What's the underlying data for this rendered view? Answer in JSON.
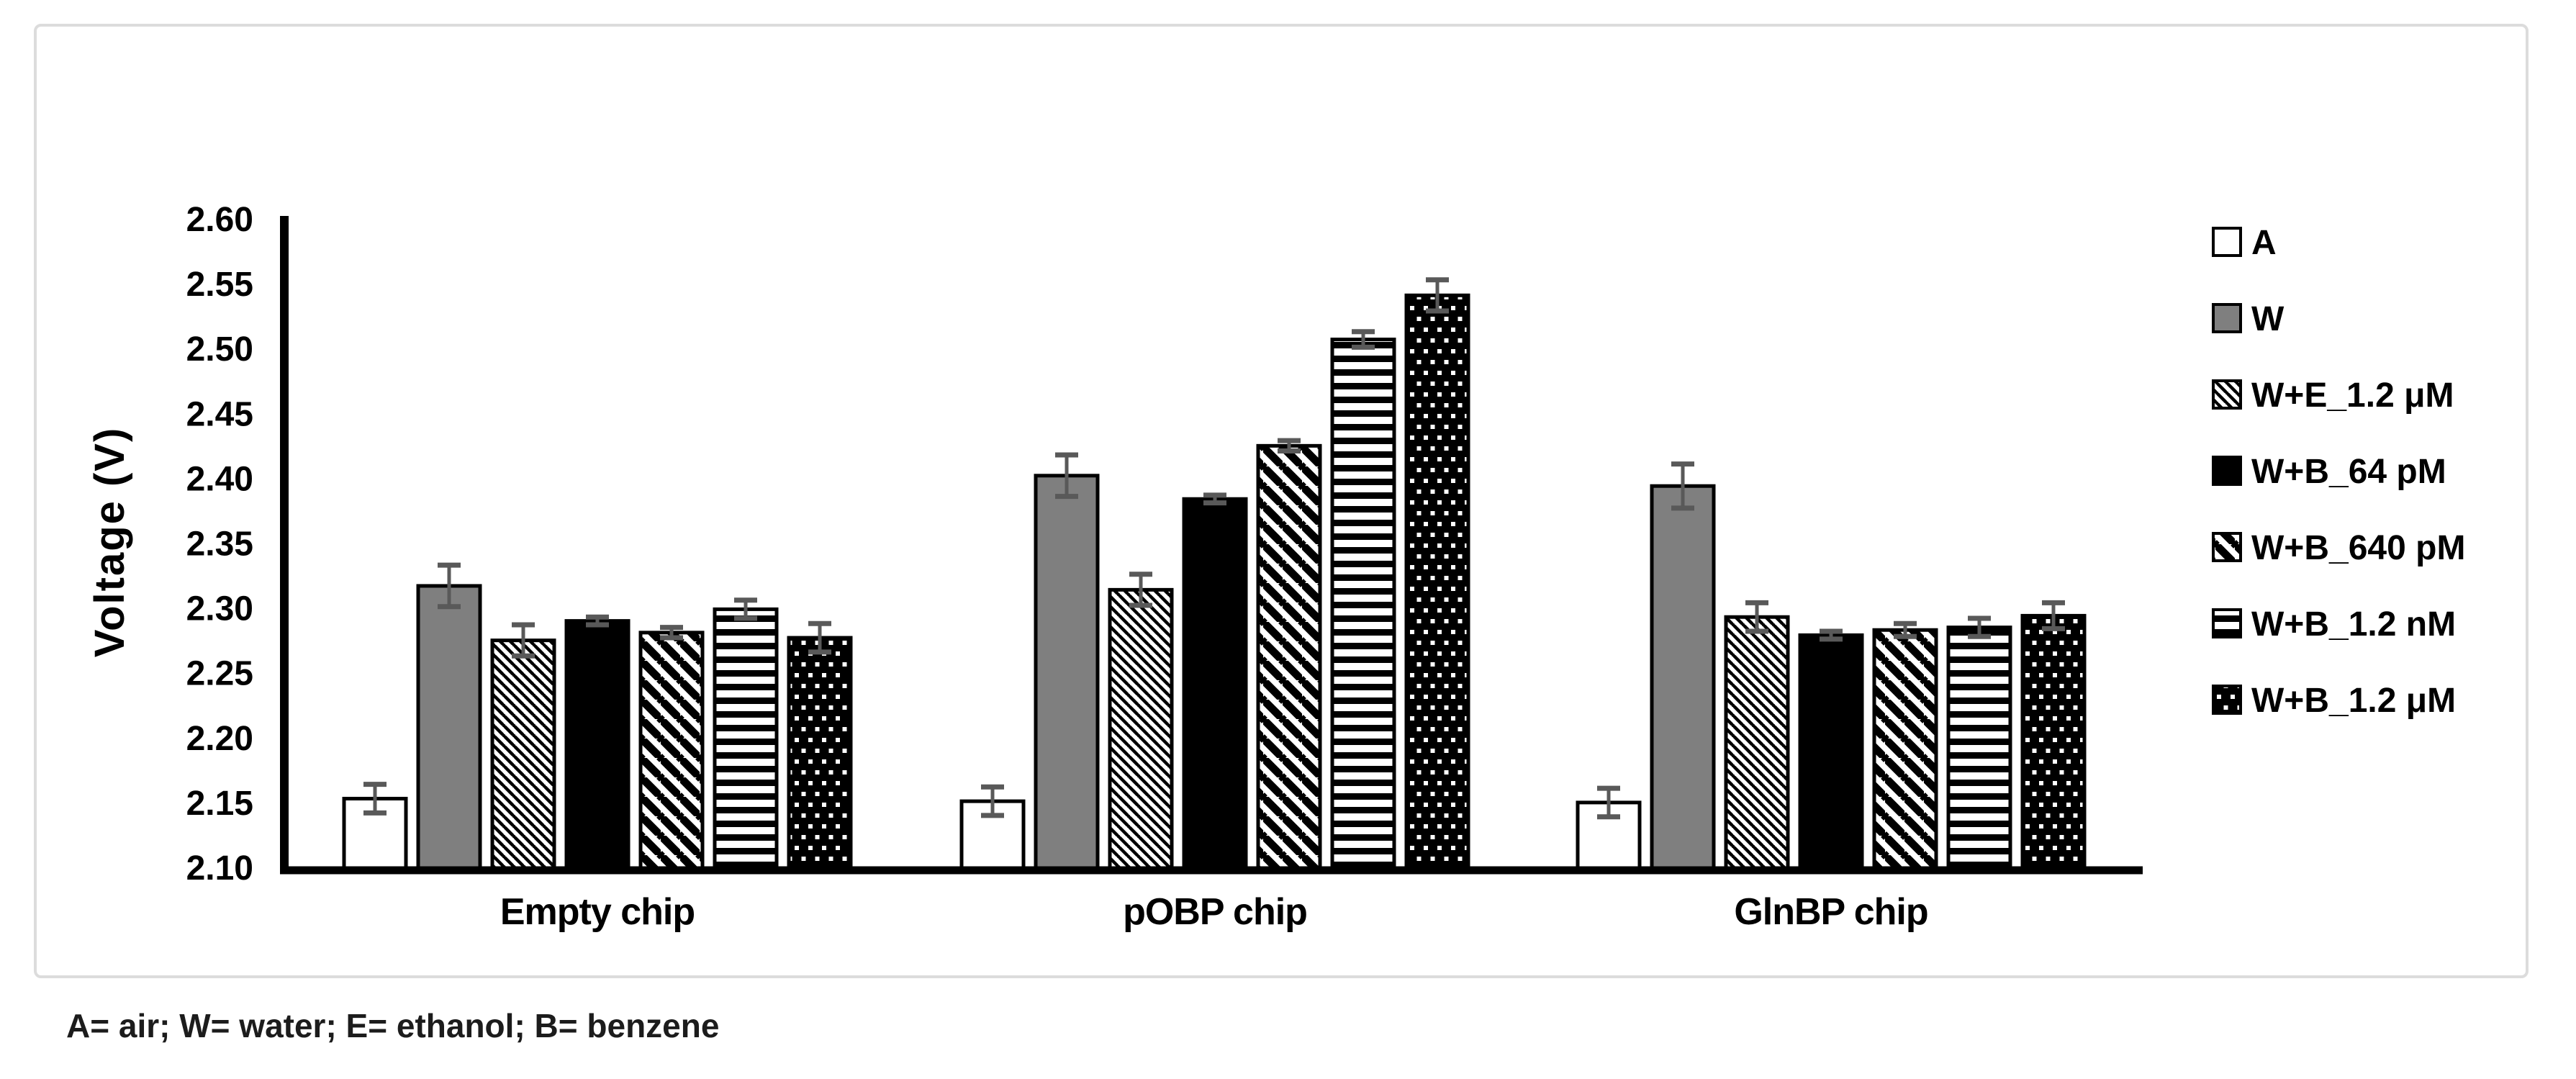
{
  "figure": {
    "footnote": "A= air; W= water; E= ethanol; B= benzene"
  },
  "colors": {
    "background": "#ffffff",
    "frame_border": "#dcdcdc",
    "bar_white": "#ffffff",
    "bar_gray": "#7f7f7f",
    "bar_black": "#000000",
    "bar_border": "#000000",
    "error_bar": "#595959",
    "text": "#000000"
  },
  "chart_data": {
    "type": "bar",
    "title": "",
    "xlabel": "",
    "ylabel": "Voltage (V)",
    "categories": [
      "Empty chip",
      "pOBP chip",
      "GlnBP chip"
    ],
    "series": [
      {
        "name": "A",
        "pattern": "white",
        "values": [
          2.153,
          2.151,
          2.15
        ],
        "errors": [
          0.011,
          0.011,
          0.011
        ]
      },
      {
        "name": "W",
        "pattern": "gray",
        "values": [
          2.317,
          2.402,
          2.394
        ],
        "errors": [
          0.016,
          0.016,
          0.017
        ]
      },
      {
        "name": "W+E_1.2 μM",
        "pattern": "light-diagonal",
        "values": [
          2.275,
          2.314,
          2.293
        ],
        "errors": [
          0.012,
          0.012,
          0.011
        ]
      },
      {
        "name": "W+B_64 pM",
        "pattern": "black",
        "values": [
          2.29,
          2.384,
          2.279
        ],
        "errors": [
          0.003,
          0.003,
          0.003
        ]
      },
      {
        "name": "W+B_640 pM",
        "pattern": "thick-diagonal",
        "values": [
          2.281,
          2.425,
          2.283
        ],
        "errors": [
          0.004,
          0.004,
          0.005
        ]
      },
      {
        "name": "W+B_1.2 nM",
        "pattern": "horizontal-stripes",
        "values": [
          2.299,
          2.507,
          2.285
        ],
        "errors": [
          0.007,
          0.006,
          0.007
        ]
      },
      {
        "name": "W+B_1.2 μM",
        "pattern": "dots",
        "values": [
          2.277,
          2.541,
          2.294
        ],
        "errors": [
          0.011,
          0.012,
          0.01
        ]
      }
    ],
    "ylim": [
      2.1,
      2.6
    ],
    "ytick_step": 0.05,
    "ytick_labels": [
      "2.10",
      "2.15",
      "2.20",
      "2.25",
      "2.30",
      "2.35",
      "2.40",
      "2.45",
      "2.50",
      "2.55",
      "2.60"
    ],
    "grid": false,
    "legend_position": "right",
    "error_bars": true
  }
}
